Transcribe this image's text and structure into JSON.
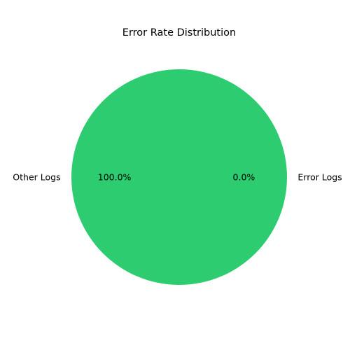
{
  "chart_data": {
    "type": "pie",
    "title": "Error Rate Distribution",
    "categories": [
      "Error Logs",
      "Other Logs"
    ],
    "values": [
      0.0,
      100.0
    ],
    "percent_labels": [
      "0.0%",
      "100.0%"
    ],
    "colors": [
      "#e74c3c",
      "#2ecc71"
    ],
    "start_angle": 0,
    "legend": "none"
  }
}
